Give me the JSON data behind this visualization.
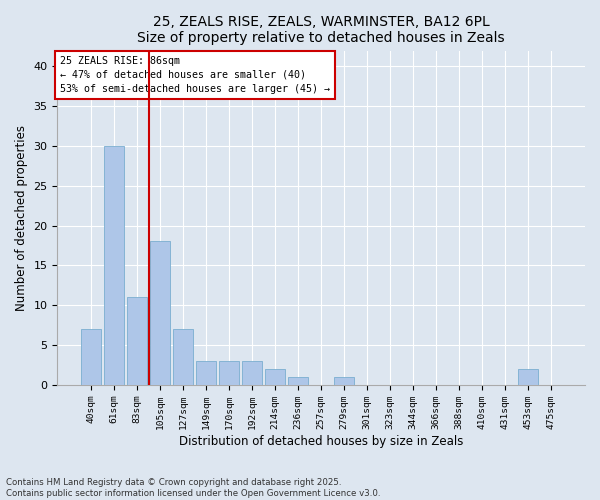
{
  "title1": "25, ZEALS RISE, ZEALS, WARMINSTER, BA12 6PL",
  "title2": "Size of property relative to detached houses in Zeals",
  "xlabel": "Distribution of detached houses by size in Zeals",
  "ylabel": "Number of detached properties",
  "bar_color": "#aec6e8",
  "bar_edge_color": "#7aaed0",
  "categories": [
    "40sqm",
    "61sqm",
    "83sqm",
    "105sqm",
    "127sqm",
    "149sqm",
    "170sqm",
    "192sqm",
    "214sqm",
    "236sqm",
    "257sqm",
    "279sqm",
    "301sqm",
    "323sqm",
    "344sqm",
    "366sqm",
    "388sqm",
    "410sqm",
    "431sqm",
    "453sqm",
    "475sqm"
  ],
  "values": [
    7,
    30,
    11,
    18,
    7,
    3,
    3,
    3,
    2,
    1,
    0,
    1,
    0,
    0,
    0,
    0,
    0,
    0,
    0,
    2,
    0
  ],
  "ylim": [
    0,
    42
  ],
  "yticks": [
    0,
    5,
    10,
    15,
    20,
    25,
    30,
    35,
    40
  ],
  "vline_x_index": 2,
  "vline_color": "#cc0000",
  "annotation_line1": "25 ZEALS RISE: 86sqm",
  "annotation_line2": "← 47% of detached houses are smaller (40)",
  "annotation_line3": "53% of semi-detached houses are larger (45) →",
  "annotation_box_color": "#ffffff",
  "annotation_box_edge": "#cc0000",
  "bg_color": "#dde6f0",
  "plot_bg_color": "#dde6f0",
  "grid_color": "#ffffff",
  "footer": "Contains HM Land Registry data © Crown copyright and database right 2025.\nContains public sector information licensed under the Open Government Licence v3.0."
}
